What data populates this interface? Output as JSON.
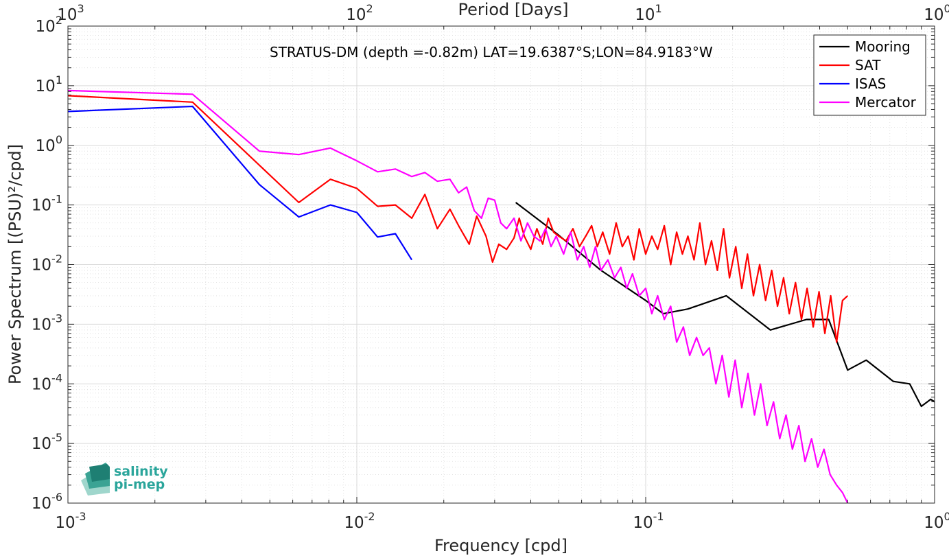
{
  "chart_data": {
    "type": "line",
    "annotation": "STRATUS-DM (depth =-0.82m) LAT=19.6387°S;LON=84.9183°W",
    "xlabel": "Frequency [cpd]",
    "ylabel": "Power Spectrum [(PSU)²/cpd]",
    "top_xlabel": "Period [Days]",
    "xscale": "log",
    "yscale": "log",
    "xlim": [
      0.001,
      1
    ],
    "ylim": [
      1e-06,
      100
    ],
    "grid": true,
    "legend_position": "top-right",
    "x_ticks": [
      0.001,
      0.01,
      0.1,
      1
    ],
    "x_tick_labels": [
      {
        "base": "10",
        "exp": "-3"
      },
      {
        "base": "10",
        "exp": "-2"
      },
      {
        "base": "10",
        "exp": "-1"
      },
      {
        "base": "10",
        "exp": "0"
      }
    ],
    "top_ticks": [
      {
        "base": "10",
        "exp": "3"
      },
      {
        "base": "10",
        "exp": "2"
      },
      {
        "base": "10",
        "exp": "1"
      },
      {
        "base": "10",
        "exp": "0"
      }
    ],
    "y_ticks": [
      1e-06,
      1e-05,
      0.0001,
      0.001,
      0.01,
      0.1,
      1,
      10,
      100
    ],
    "y_tick_labels": [
      {
        "base": "10",
        "exp": "-6"
      },
      {
        "base": "10",
        "exp": "-5"
      },
      {
        "base": "10",
        "exp": "-4"
      },
      {
        "base": "10",
        "exp": "-3"
      },
      {
        "base": "10",
        "exp": "-2"
      },
      {
        "base": "10",
        "exp": "-1"
      },
      {
        "base": "10",
        "exp": "0"
      },
      {
        "base": "10",
        "exp": "1"
      },
      {
        "base": "10",
        "exp": "2"
      }
    ],
    "series": [
      {
        "name": "Mooring",
        "color": "#000000",
        "x": [
          0.0355,
          0.05,
          0.07,
          0.1,
          0.115,
          0.14,
          0.19,
          0.27,
          0.36,
          0.43,
          0.5,
          0.58,
          0.72,
          0.82,
          0.9,
          0.97,
          1.0
        ],
        "y": [
          0.11,
          0.031,
          0.008,
          0.0025,
          0.0015,
          0.0018,
          0.003,
          0.0008,
          0.0012,
          0.0012,
          0.00017,
          0.00025,
          0.00011,
          0.0001,
          4.2e-05,
          5.5e-05,
          5e-05
        ]
      },
      {
        "name": "SAT",
        "color": "#ff0000",
        "x": [
          0.001,
          0.0027,
          0.0063,
          0.0081,
          0.01,
          0.0118,
          0.0136,
          0.0155,
          0.0172,
          0.019,
          0.021,
          0.0225,
          0.0245,
          0.026,
          0.028,
          0.0295,
          0.031,
          0.033,
          0.035,
          0.0365,
          0.038,
          0.04,
          0.042,
          0.044,
          0.046,
          0.048,
          0.05,
          0.053,
          0.056,
          0.059,
          0.062,
          0.065,
          0.068,
          0.071,
          0.075,
          0.079,
          0.083,
          0.087,
          0.091,
          0.095,
          0.1,
          0.105,
          0.11,
          0.116,
          0.122,
          0.128,
          0.134,
          0.14,
          0.147,
          0.154,
          0.161,
          0.169,
          0.177,
          0.186,
          0.195,
          0.205,
          0.215,
          0.225,
          0.236,
          0.248,
          0.26,
          0.273,
          0.286,
          0.3,
          0.314,
          0.33,
          0.346,
          0.362,
          0.38,
          0.398,
          0.417,
          0.437,
          0.458,
          0.48,
          0.5
        ],
        "y": [
          6.8,
          5.3,
          0.11,
          0.27,
          0.19,
          0.095,
          0.1,
          0.06,
          0.15,
          0.04,
          0.085,
          0.045,
          0.022,
          0.065,
          0.03,
          0.011,
          0.022,
          0.018,
          0.028,
          0.06,
          0.03,
          0.018,
          0.04,
          0.022,
          0.06,
          0.035,
          0.03,
          0.025,
          0.04,
          0.02,
          0.03,
          0.045,
          0.02,
          0.035,
          0.015,
          0.05,
          0.02,
          0.03,
          0.012,
          0.04,
          0.015,
          0.03,
          0.018,
          0.045,
          0.01,
          0.035,
          0.015,
          0.03,
          0.012,
          0.05,
          0.01,
          0.025,
          0.008,
          0.04,
          0.006,
          0.02,
          0.004,
          0.015,
          0.003,
          0.01,
          0.0025,
          0.008,
          0.002,
          0.006,
          0.0015,
          0.005,
          0.0012,
          0.004,
          0.0009,
          0.0035,
          0.0007,
          0.003,
          0.0005,
          0.0025,
          0.003
        ]
      },
      {
        "name": "ISAS",
        "color": "#0000ff",
        "x": [
          0.001,
          0.0027,
          0.0046,
          0.0063,
          0.0081,
          0.01,
          0.0118,
          0.0136,
          0.0155
        ],
        "y": [
          3.7,
          4.5,
          0.22,
          0.063,
          0.1,
          0.075,
          0.029,
          0.033,
          0.012
        ]
      },
      {
        "name": "Mercator",
        "color": "#ff00ff",
        "x": [
          0.001,
          0.0027,
          0.0046,
          0.0063,
          0.0081,
          0.01,
          0.0118,
          0.0136,
          0.0155,
          0.0172,
          0.019,
          0.021,
          0.0225,
          0.024,
          0.0255,
          0.027,
          0.0285,
          0.03,
          0.0315,
          0.033,
          0.035,
          0.037,
          0.039,
          0.041,
          0.043,
          0.045,
          0.047,
          0.049,
          0.052,
          0.055,
          0.058,
          0.061,
          0.064,
          0.067,
          0.07,
          0.074,
          0.078,
          0.082,
          0.086,
          0.09,
          0.095,
          0.1,
          0.105,
          0.11,
          0.116,
          0.122,
          0.128,
          0.135,
          0.142,
          0.15,
          0.158,
          0.166,
          0.175,
          0.184,
          0.194,
          0.204,
          0.215,
          0.226,
          0.238,
          0.25,
          0.263,
          0.277,
          0.291,
          0.306,
          0.322,
          0.339,
          0.356,
          0.375,
          0.394,
          0.414,
          0.435,
          0.458,
          0.48,
          0.5
        ],
        "y": [
          8.3,
          7.2,
          0.8,
          0.7,
          0.9,
          0.55,
          0.36,
          0.4,
          0.3,
          0.35,
          0.25,
          0.27,
          0.16,
          0.2,
          0.08,
          0.06,
          0.13,
          0.12,
          0.05,
          0.04,
          0.06,
          0.025,
          0.05,
          0.03,
          0.025,
          0.04,
          0.02,
          0.03,
          0.015,
          0.035,
          0.012,
          0.02,
          0.009,
          0.02,
          0.008,
          0.012,
          0.006,
          0.009,
          0.004,
          0.007,
          0.003,
          0.004,
          0.0015,
          0.003,
          0.0012,
          0.002,
          0.0005,
          0.0009,
          0.0003,
          0.0006,
          0.0003,
          0.0004,
          0.0001,
          0.0003,
          6e-05,
          0.00025,
          4e-05,
          0.00015,
          3e-05,
          0.0001,
          2e-05,
          5e-05,
          1.2e-05,
          3e-05,
          8e-06,
          2e-05,
          5e-06,
          1.2e-05,
          4e-06,
          8e-06,
          3e-06,
          2e-06,
          1.5e-06,
          1e-06
        ]
      }
    ]
  },
  "logo": {
    "line1": "salinity",
    "line2": "pi-mep"
  }
}
